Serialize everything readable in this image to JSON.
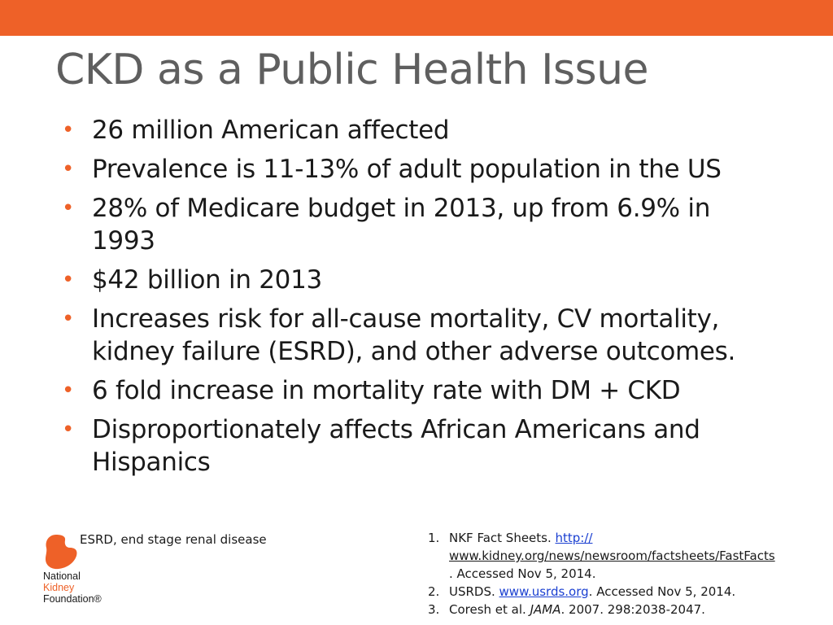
{
  "colors": {
    "accent": "#ee6128",
    "title": "#5f5f5f",
    "link": "#1a3fd1"
  },
  "title": "CKD as a Public Health Issue",
  "bullets": [
    "26 million American affected",
    "Prevalence is 11-13% of adult population in the US",
    "28% of Medicare budget in 2013, up from 6.9% in 1993",
    "$42 billion in 2013",
    "Increases risk for all-cause mortality, CV mortality, kidney failure (ESRD), and other adverse outcomes.",
    "6 fold increase in mortality rate with DM + CKD",
    "Disproportionately affects African Americans and Hispanics"
  ],
  "logo": {
    "line1": "National",
    "line2": "Kidney",
    "line3": "Foundation®"
  },
  "abbreviation": "ESRD, end stage renal disease",
  "references": [
    {
      "num": "1.",
      "before": "NKF Fact Sheets. ",
      "link1": "http://",
      "link2": "www.kidney.org/news/newsroom/factsheets/FastFacts",
      "after": ". Accessed Nov 5, 2014."
    },
    {
      "num": "2.",
      "before": "USRDS. ",
      "link": "www.usrds.org",
      "after": ". Accessed Nov 5, 2014."
    },
    {
      "num": "3.",
      "before": "Coresh et al. ",
      "journal": "JAMA",
      "after": ". 2007. 298:2038-2047."
    }
  ]
}
